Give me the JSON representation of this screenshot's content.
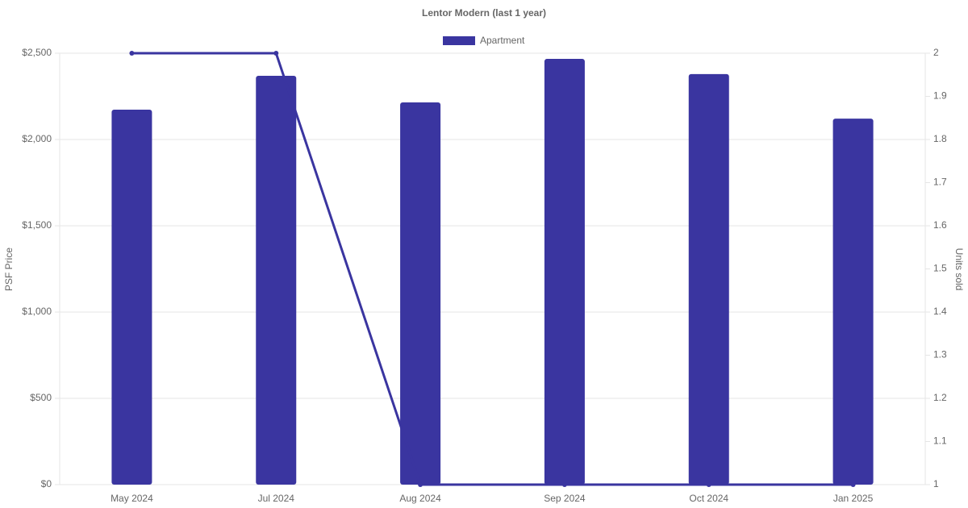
{
  "chart_data": {
    "type": "bar-line",
    "title": "Lentor Modern (last 1 year)",
    "y_label": "PSF Price",
    "y2_label": "Units sold",
    "categories": [
      "May 2024",
      "Jul 2024",
      "Aug 2024",
      "Sep 2024",
      "Oct 2024",
      "Jan 2025"
    ],
    "series": [
      {
        "name": "Apartment",
        "type": "bar",
        "color": "#3a35a0",
        "values": [
          2173,
          2369,
          2215,
          2467,
          2379,
          2121
        ]
      },
      {
        "type": "line",
        "axis": "y2",
        "color": "#3a35a0",
        "values": [
          2,
          2,
          1,
          1,
          1,
          1
        ]
      }
    ],
    "ylim": [
      0,
      2500
    ],
    "yticks": [
      {
        "value": 0,
        "label": "$0"
      },
      {
        "value": 500,
        "label": "$500"
      },
      {
        "value": 1000,
        "label": "$1,000"
      },
      {
        "value": 1500,
        "label": "$1,500"
      },
      {
        "value": 2000,
        "label": "$2,000"
      },
      {
        "value": 2500,
        "label": "$2,500"
      }
    ],
    "y2lim": [
      1,
      2
    ],
    "y2ticks": [
      1,
      1.1,
      1.2,
      1.3,
      1.4,
      1.5,
      1.6,
      1.7,
      1.8,
      1.9,
      2
    ],
    "grid": true,
    "legend": "top"
  }
}
